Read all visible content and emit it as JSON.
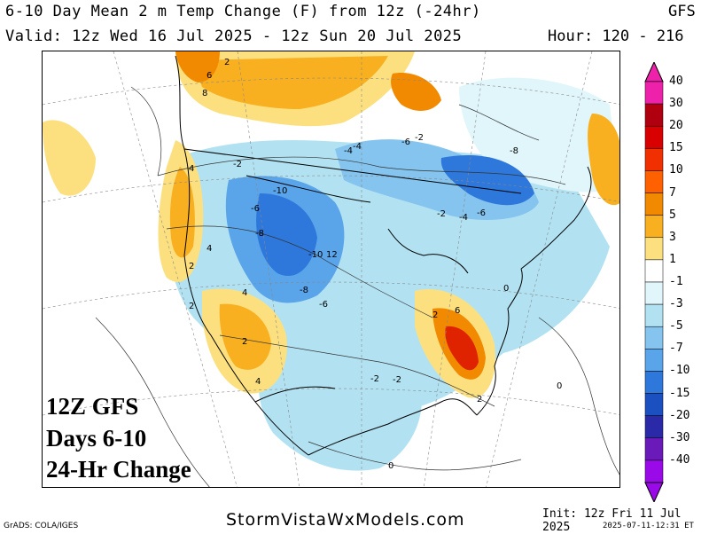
{
  "header": {
    "title": "6-10 Day Mean 2 m Temp Change (F) from 12z (-24hr)",
    "model": "GFS",
    "valid": "Valid: 12z Wed 16 Jul 2025 - 12z Sun 20 Jul 2025",
    "hour": "Hour: 120 - 216"
  },
  "overlay": {
    "line1": "12Z GFS",
    "line2": "Days 6-10",
    "line3": "24-Hr Change"
  },
  "footer": {
    "grads": "GrADS: COLA/IGES",
    "site": "StormVistaWxModels.com",
    "init": "Init: 12z Fri 11 Jul 2025",
    "generated": "2025-07-11-12:31 ET"
  },
  "colorbar": {
    "labels": [
      "40",
      "30",
      "20",
      "15",
      "10",
      "7",
      "5",
      "3",
      "1",
      "-1",
      "-3",
      "-5",
      "-7",
      "-10",
      "-15",
      "-20",
      "-30",
      "-40"
    ],
    "colors": [
      "#ee22aa",
      "#b00010",
      "#d80000",
      "#f03000",
      "#ff6000",
      "#f28a00",
      "#f8b020",
      "#fce080",
      "#ffffff",
      "#e0f6fa",
      "#b2e2f2",
      "#84c4ee",
      "#5aa4ea",
      "#2e78dc",
      "#1a50c0",
      "#2a2aa8",
      "#6a1ab8",
      "#9a0ae8"
    ]
  },
  "map_labels": [
    {
      "text": "-2"
    },
    {
      "text": "-10"
    },
    {
      "text": "-6"
    },
    {
      "text": "-8"
    },
    {
      "text": "-10"
    },
    {
      "text": "12"
    },
    {
      "text": "-8"
    },
    {
      "text": "-6"
    },
    {
      "text": "-4"
    },
    {
      "text": "-2"
    },
    {
      "text": "-4"
    },
    {
      "text": "-6"
    },
    {
      "text": "-8"
    },
    {
      "text": "-6"
    },
    {
      "text": "-4"
    },
    {
      "text": "-2"
    },
    {
      "text": "2"
    },
    {
      "text": "4"
    },
    {
      "text": "6"
    },
    {
      "text": "8"
    },
    {
      "text": "4"
    },
    {
      "text": "2"
    },
    {
      "text": "2"
    },
    {
      "text": "4"
    },
    {
      "text": "2"
    },
    {
      "text": "4"
    },
    {
      "text": "6"
    },
    {
      "text": "2"
    },
    {
      "text": "0"
    },
    {
      "text": "0"
    },
    {
      "text": "-2"
    },
    {
      "text": "-2"
    },
    {
      "text": "2"
    },
    {
      "text": "0"
    }
  ]
}
